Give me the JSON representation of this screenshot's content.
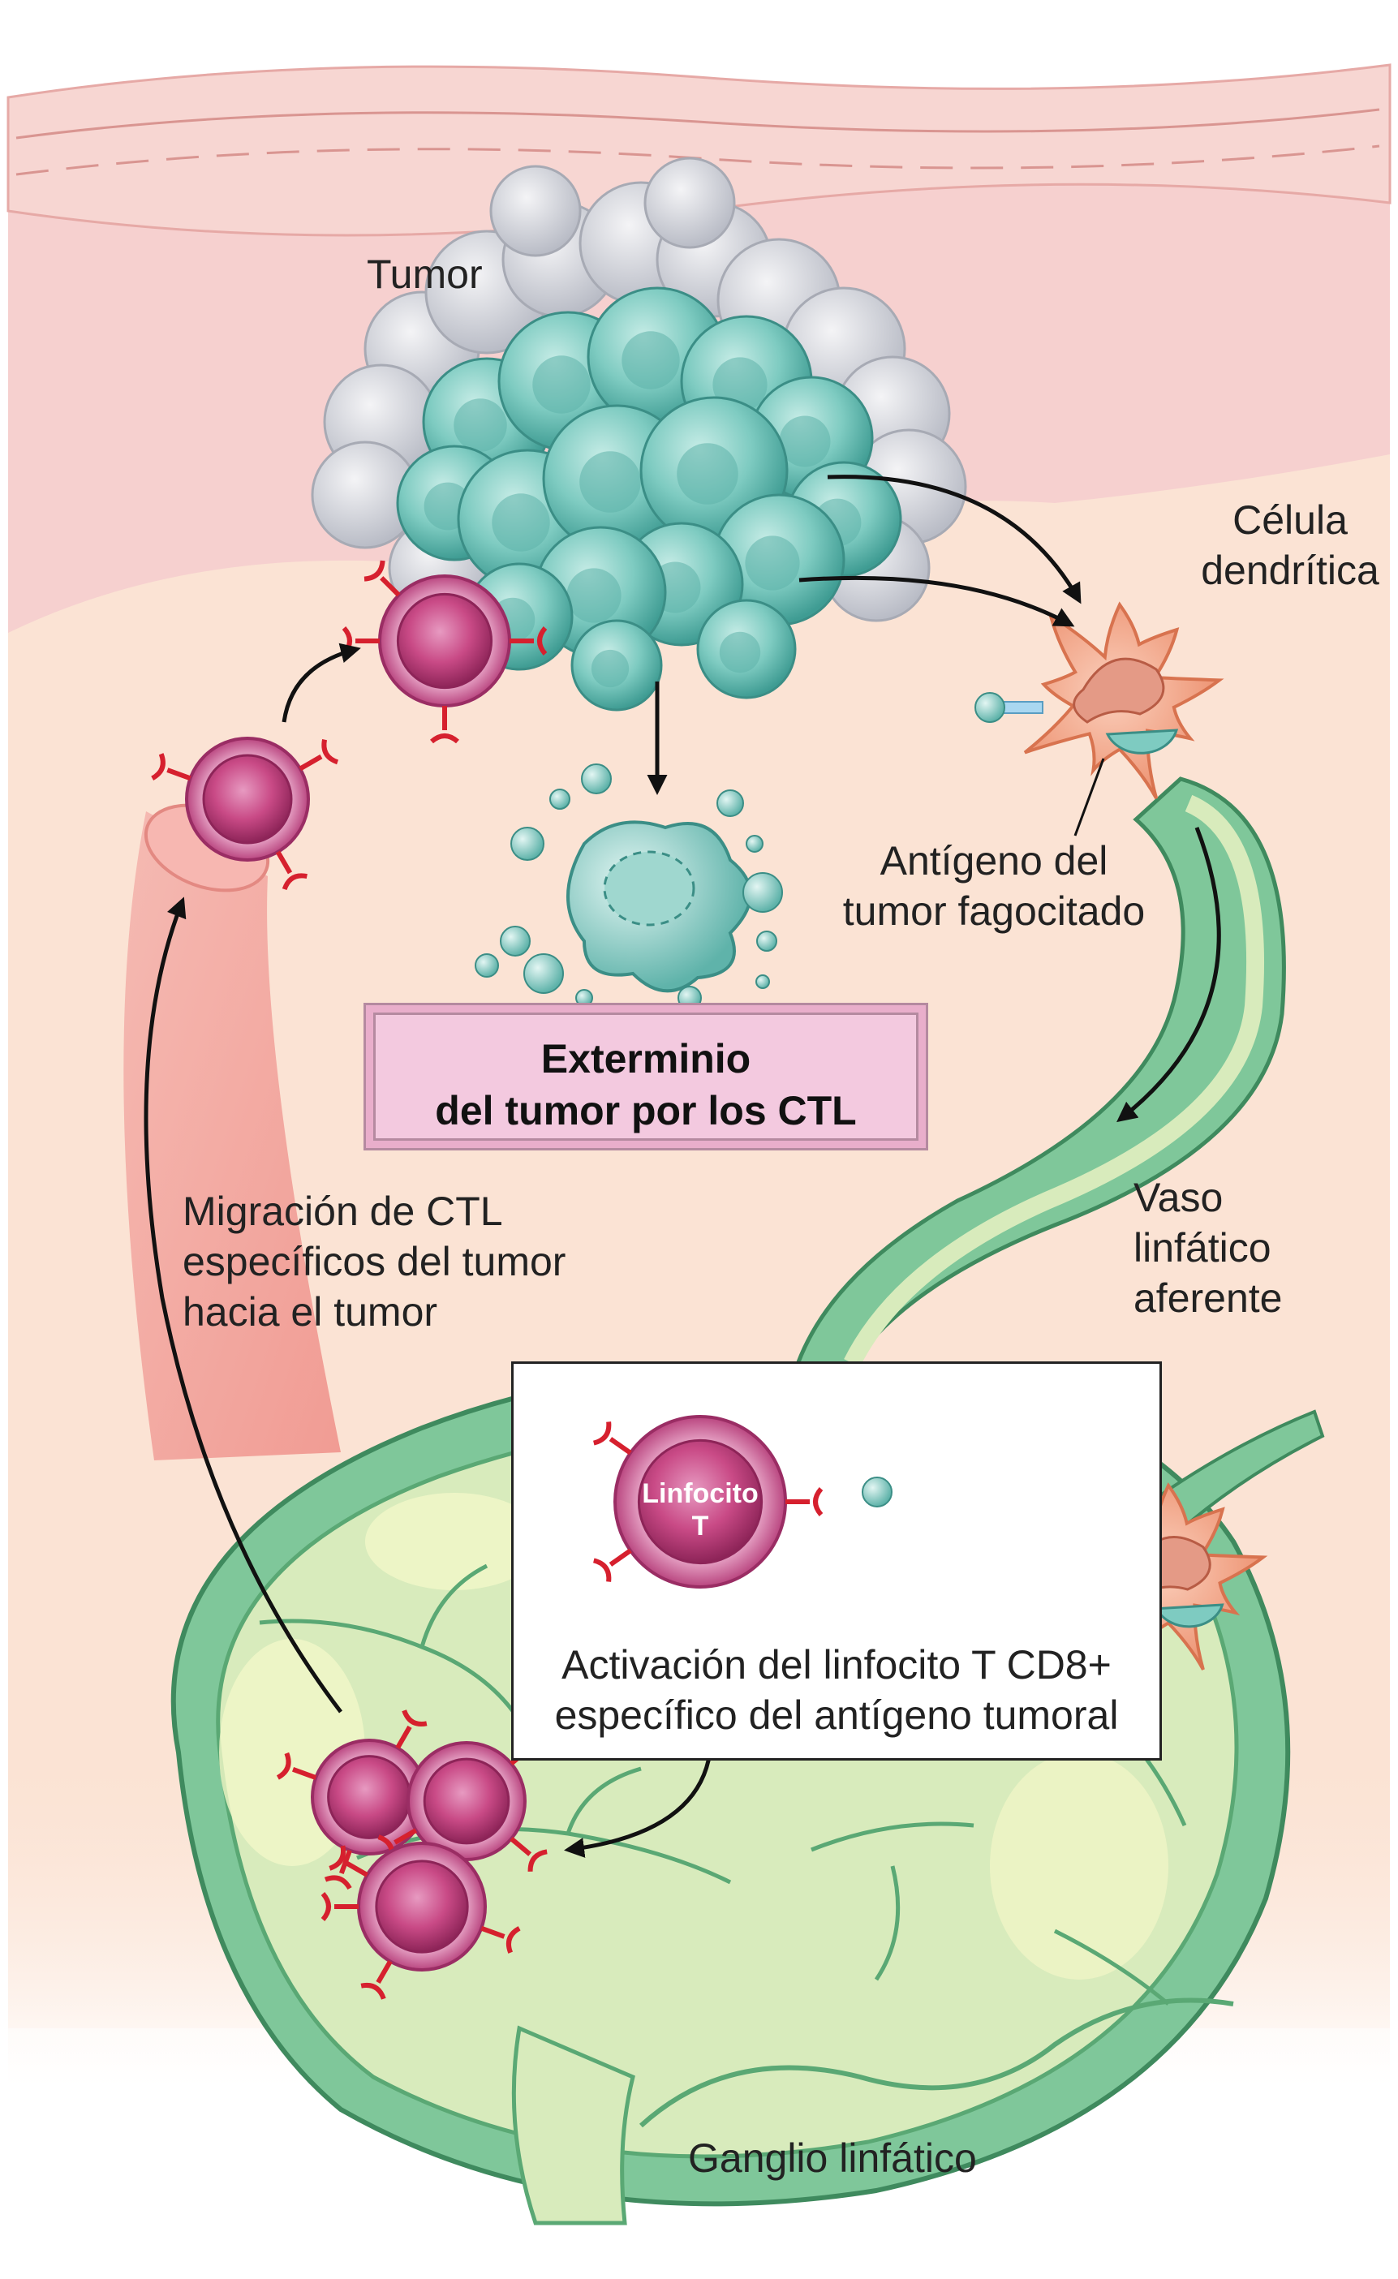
{
  "labels": {
    "tumor": "Tumor",
    "dendritic_cell": [
      "Célula",
      "dendrítica"
    ],
    "phagocytosed_antigen": [
      "Antígeno del",
      "tumor fagocitado"
    ],
    "killing": [
      "Exterminio",
      "del tumor por los CTL"
    ],
    "migration": [
      "Migración de CTL",
      "específicos del tumor",
      "hacia el tumor"
    ],
    "afferent_vessel": [
      "Vaso",
      "linfático",
      "aferente"
    ],
    "t_cell": [
      "Linfocito",
      "T"
    ],
    "activation": [
      "Activación del linfocito T CD8+",
      "específico del antígeno tumoral"
    ],
    "lymph_node": "Ganglio linfático"
  },
  "colors": {
    "skin_top": "#f6d0cf",
    "tissue": "#fbe3d4",
    "tumor_cell": "#7ecbc1",
    "ctl": "#c94a86",
    "receptor": "#d6202e",
    "dendritic": "#f0a07f",
    "node_green": "#7fc79a",
    "node_fill": "#d8ebbc"
  }
}
